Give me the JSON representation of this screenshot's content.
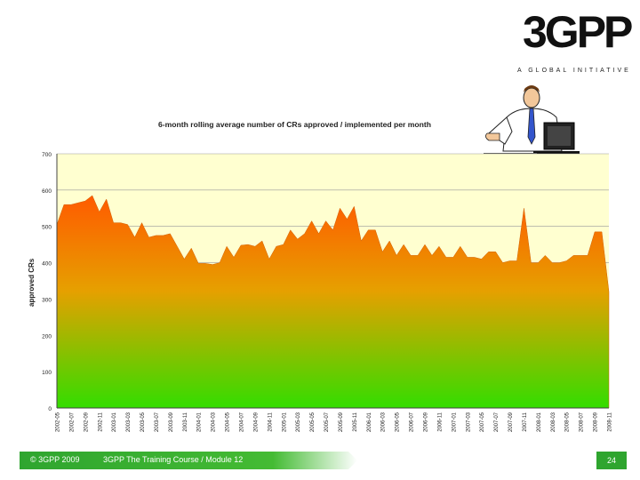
{
  "logo": {
    "mark": "3GPP",
    "tagline": "A GLOBAL INITIATIVE"
  },
  "footer": {
    "copyright": "© 3GPP 2009",
    "course": "3GPP The Training Course / Module 12",
    "page": "24"
  },
  "colors": {
    "plot_bg": "#ffffd0",
    "area_top": "#ff6a00",
    "area_bottom": "#33dd00",
    "footer_green": "#2fa52f"
  },
  "chart_data": {
    "type": "area",
    "title": "6-month rolling average number of CRs approved / implemented per month",
    "ylabel": "approved CRs",
    "xlabel": "",
    "ylim": [
      0,
      700
    ],
    "yticks": [
      0,
      100,
      200,
      300,
      400,
      500,
      600,
      700
    ],
    "grid": true,
    "legend": "none",
    "x_labels": [
      "2002-05",
      "2002-07",
      "2002-09",
      "2002-11",
      "2003-01",
      "2003-03",
      "2003-05",
      "2003-07",
      "2003-09",
      "2003-11",
      "2004-01",
      "2004-03",
      "2004-05",
      "2004-07",
      "2004-09",
      "2004-11",
      "2005-01",
      "2005-03",
      "2005-05",
      "2005-07",
      "2005-09",
      "2005-11",
      "2006-01",
      "2006-03",
      "2006-05",
      "2006-07",
      "2006-09",
      "2006-11",
      "2007-01",
      "2007-03",
      "2007-05",
      "2007-07",
      "2007-09",
      "2007-11",
      "2008-01",
      "2008-03",
      "2008-05",
      "2008-07",
      "2008-09",
      "2008-11"
    ],
    "values": [
      505,
      560,
      560,
      565,
      570,
      585,
      540,
      575,
      510,
      510,
      505,
      470,
      510,
      470,
      475,
      475,
      480,
      445,
      410,
      440,
      398,
      398,
      395,
      400,
      445,
      415,
      448,
      450,
      445,
      460,
      410,
      445,
      450,
      490,
      465,
      480,
      515,
      480,
      515,
      490,
      550,
      520,
      555,
      460,
      490,
      490,
      430,
      460,
      420,
      450,
      420,
      420,
      450,
      420,
      445,
      415,
      415,
      445,
      415,
      415,
      410,
      430,
      430,
      400,
      405,
      405,
      550,
      400,
      400,
      420,
      400,
      400,
      405,
      420,
      420,
      420,
      485,
      485,
      320
    ]
  }
}
